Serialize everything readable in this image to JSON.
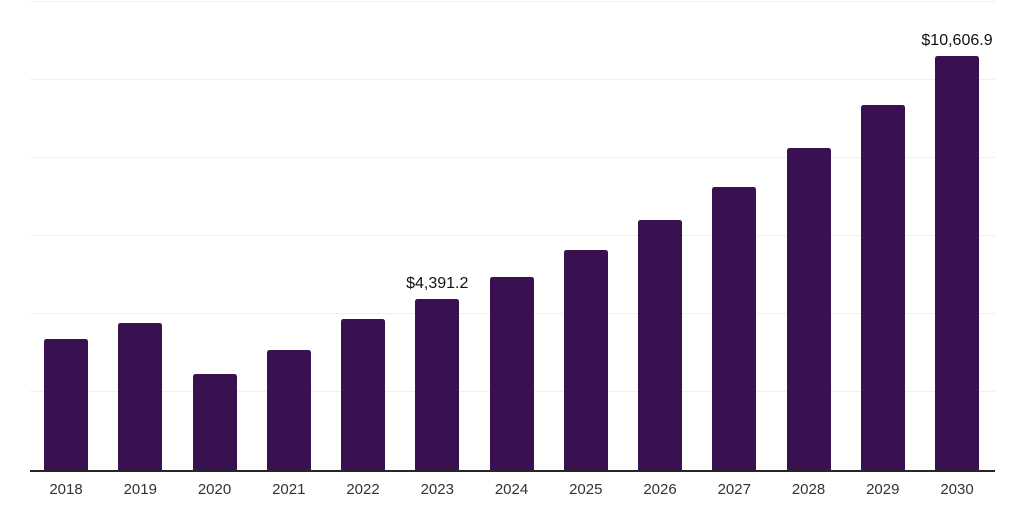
{
  "chart_data": {
    "type": "bar",
    "title": "",
    "xlabel": "",
    "ylabel": "",
    "categories": [
      "2018",
      "2019",
      "2020",
      "2021",
      "2022",
      "2023",
      "2024",
      "2025",
      "2026",
      "2027",
      "2028",
      "2029",
      "2030"
    ],
    "values": [
      3360,
      3770,
      2460,
      3080,
      3870,
      4391.2,
      4950,
      5640,
      6410,
      7260,
      8260,
      9360,
      10606.9
    ],
    "data_labels": {
      "2023": "$4,391.2",
      "2030": "$10,606.9"
    },
    "ylim": [
      0,
      12000
    ],
    "gridline_step": 2000,
    "grid": true,
    "legend": false,
    "colors": {
      "bar": "#3a1150",
      "gridline": "#f0f0f0",
      "axis_line": "#262626",
      "axis_label_text": "#333333",
      "data_label_text": "#111111"
    }
  }
}
